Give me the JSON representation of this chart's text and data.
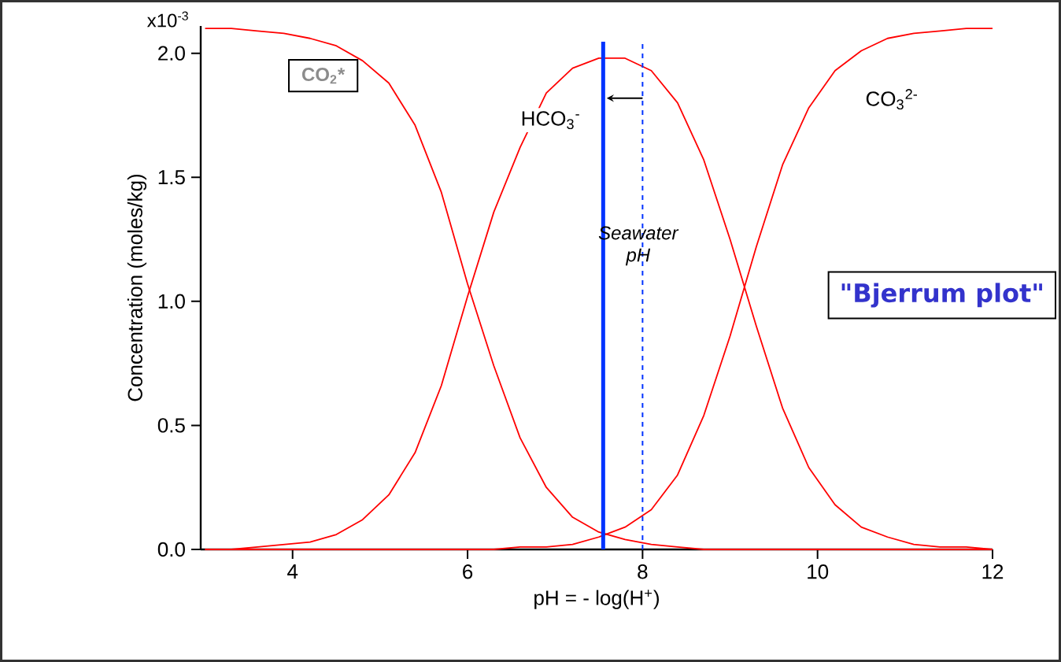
{
  "chart_data": {
    "type": "line",
    "xlabel": "pH = - log(H$^{+}$)",
    "ylabel": "Concentration (moles/kg)",
    "x": [
      3.0,
      3.3,
      3.6,
      3.9,
      4.2,
      4.5,
      4.8,
      5.1,
      5.4,
      5.7,
      6.0,
      6.3,
      6.6,
      6.9,
      7.2,
      7.5,
      7.8,
      8.1,
      8.4,
      8.7,
      9.0,
      9.3,
      9.6,
      9.9,
      10.2,
      10.5,
      10.8,
      11.1,
      11.4,
      11.7,
      12.0
    ],
    "series": [
      {
        "name": "CO$_{2}$*",
        "color": "#ff0000",
        "values": [
          2.1,
          2.1,
          2.09,
          2.08,
          2.06,
          2.03,
          1.97,
          1.88,
          1.71,
          1.44,
          1.07,
          0.74,
          0.45,
          0.25,
          0.13,
          0.07,
          0.04,
          0.02,
          0.01,
          0.0,
          0.0,
          0.0,
          0.0,
          0.0,
          0.0,
          0.0,
          0.0,
          0.0,
          0.0,
          0.0,
          0.0
        ]
      },
      {
        "name": "HCO$_{3}$$^{-}$",
        "color": "#ff0000",
        "values": [
          0.0,
          0.0,
          0.01,
          0.02,
          0.03,
          0.06,
          0.12,
          0.22,
          0.39,
          0.66,
          1.02,
          1.36,
          1.62,
          1.84,
          1.94,
          1.98,
          1.98,
          1.93,
          1.8,
          1.57,
          1.25,
          0.9,
          0.57,
          0.33,
          0.18,
          0.09,
          0.05,
          0.02,
          0.01,
          0.01,
          0.0
        ]
      },
      {
        "name": "CO$_{3}$$^{2-}$",
        "color": "#ff0000",
        "values": [
          0.0,
          0.0,
          0.0,
          0.0,
          0.0,
          0.0,
          0.0,
          0.0,
          0.0,
          0.0,
          0.0,
          0.0,
          0.01,
          0.01,
          0.02,
          0.05,
          0.09,
          0.16,
          0.3,
          0.54,
          0.86,
          1.22,
          1.55,
          1.78,
          1.93,
          2.01,
          2.06,
          2.08,
          2.09,
          2.1,
          2.1
        ]
      }
    ],
    "xlim": [
      2.95,
      12
    ],
    "ylim": [
      0,
      2.11
    ],
    "xticks": [
      4,
      6,
      8,
      10,
      12
    ],
    "yticks": [
      {
        "value": 0,
        "label": "0.0"
      },
      {
        "value": 0.5,
        "label": "0.5"
      },
      {
        "value": 1.0,
        "label": "1.0"
      },
      {
        "value": 1.5,
        "label": "1.5"
      },
      {
        "value": 2.0,
        "label": "2.0"
      }
    ],
    "ref_lines": [
      {
        "axis": "x",
        "value": 7.55,
        "color": "#0033ff",
        "line_style": "solid"
      },
      {
        "axis": "x",
        "value": 8,
        "color": "#0033ff",
        "line_style": "dashed",
        "label": "Seawater pH"
      }
    ],
    "annotations": [
      "x10$^{-3}$",
      "\"Bjerrum plot\""
    ]
  }
}
